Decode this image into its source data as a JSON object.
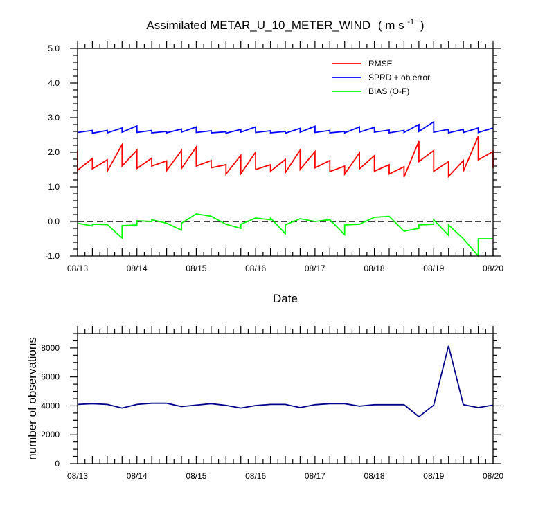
{
  "chart_data": [
    {
      "type": "line",
      "title": "Assimilated METAR_U_10_METER_WIND",
      "title_units": "( m s",
      "title_units_sup": "-1",
      "title_units_close": ")",
      "xlabel": "Date",
      "ylabel": "",
      "xticks": [
        "08/13",
        "08/14",
        "08/15",
        "08/16",
        "08/17",
        "08/18",
        "08/19",
        "08/20"
      ],
      "xlim": [
        0,
        7
      ],
      "ylim": [
        -1.0,
        5.0
      ],
      "yticks": [
        "-1.0",
        "0.0",
        "1.0",
        "2.0",
        "3.0",
        "4.0",
        "5.0"
      ],
      "zero_line": "dashed",
      "legend_position": "top-right",
      "series": [
        {
          "name": "RMSE",
          "color": "#ff0000",
          "points": [
            [
              0.0,
              2.05
            ],
            [
              0.0,
              1.48
            ],
            [
              0.25,
              1.82
            ],
            [
              0.25,
              1.52
            ],
            [
              0.5,
              1.78
            ],
            [
              0.5,
              1.45
            ],
            [
              0.75,
              2.22
            ],
            [
              0.75,
              1.6
            ],
            [
              1.0,
              2.06
            ],
            [
              1.0,
              1.53
            ],
            [
              1.25,
              1.83
            ],
            [
              1.25,
              1.6
            ],
            [
              1.5,
              1.75
            ],
            [
              1.5,
              1.47
            ],
            [
              1.75,
              2.05
            ],
            [
              1.75,
              1.53
            ],
            [
              2.0,
              2.15
            ],
            [
              2.0,
              1.6
            ],
            [
              2.25,
              1.76
            ],
            [
              2.25,
              1.55
            ],
            [
              2.5,
              1.64
            ],
            [
              2.5,
              1.37
            ],
            [
              2.75,
              1.91
            ],
            [
              2.75,
              1.38
            ],
            [
              3.0,
              2.0
            ],
            [
              3.0,
              1.5
            ],
            [
              3.25,
              1.64
            ],
            [
              3.25,
              1.45
            ],
            [
              3.5,
              1.79
            ],
            [
              3.5,
              1.41
            ],
            [
              3.75,
              2.06
            ],
            [
              3.75,
              1.5
            ],
            [
              4.0,
              2.02
            ],
            [
              4.0,
              1.55
            ],
            [
              4.25,
              1.76
            ],
            [
              4.25,
              1.44
            ],
            [
              4.5,
              1.6
            ],
            [
              4.5,
              1.37
            ],
            [
              4.75,
              1.98
            ],
            [
              4.75,
              1.52
            ],
            [
              5.0,
              1.9
            ],
            [
              5.0,
              1.45
            ],
            [
              5.25,
              1.64
            ],
            [
              5.25,
              1.37
            ],
            [
              5.5,
              1.58
            ],
            [
              5.5,
              1.28
            ],
            [
              5.75,
              2.32
            ],
            [
              5.75,
              1.73
            ],
            [
              6.0,
              2.05
            ],
            [
              6.0,
              1.45
            ],
            [
              6.25,
              1.73
            ],
            [
              6.25,
              1.3
            ],
            [
              6.5,
              1.76
            ],
            [
              6.5,
              1.45
            ],
            [
              6.75,
              2.46
            ],
            [
              6.75,
              1.78
            ],
            [
              7.0,
              2.02
            ],
            [
              7.0,
              1.55
            ]
          ]
        },
        {
          "name": "SPRD + ob error",
          "color": "#0000ff",
          "points": [
            [
              0.0,
              2.57
            ],
            [
              0.25,
              2.63
            ],
            [
              0.25,
              2.55
            ],
            [
              0.5,
              2.63
            ],
            [
              0.5,
              2.56
            ],
            [
              0.75,
              2.7
            ],
            [
              0.75,
              2.58
            ],
            [
              1.0,
              2.76
            ],
            [
              1.0,
              2.57
            ],
            [
              1.25,
              2.63
            ],
            [
              1.25,
              2.56
            ],
            [
              1.5,
              2.6
            ],
            [
              1.5,
              2.56
            ],
            [
              1.75,
              2.67
            ],
            [
              1.75,
              2.58
            ],
            [
              2.0,
              2.73
            ],
            [
              2.0,
              2.57
            ],
            [
              2.25,
              2.62
            ],
            [
              2.25,
              2.56
            ],
            [
              2.5,
              2.59
            ],
            [
              2.5,
              2.55
            ],
            [
              2.75,
              2.66
            ],
            [
              2.75,
              2.58
            ],
            [
              3.0,
              2.73
            ],
            [
              3.0,
              2.57
            ],
            [
              3.25,
              2.62
            ],
            [
              3.25,
              2.56
            ],
            [
              3.5,
              2.6
            ],
            [
              3.5,
              2.55
            ],
            [
              3.75,
              2.69
            ],
            [
              3.75,
              2.58
            ],
            [
              4.0,
              2.75
            ],
            [
              4.0,
              2.57
            ],
            [
              4.25,
              2.63
            ],
            [
              4.25,
              2.56
            ],
            [
              4.5,
              2.6
            ],
            [
              4.5,
              2.56
            ],
            [
              4.75,
              2.73
            ],
            [
              4.75,
              2.58
            ],
            [
              5.0,
              2.72
            ],
            [
              5.0,
              2.58
            ],
            [
              5.25,
              2.64
            ],
            [
              5.25,
              2.56
            ],
            [
              5.5,
              2.63
            ],
            [
              5.5,
              2.57
            ],
            [
              5.75,
              2.8
            ],
            [
              5.75,
              2.6
            ],
            [
              6.0,
              2.88
            ],
            [
              6.0,
              2.58
            ],
            [
              6.25,
              2.66
            ],
            [
              6.25,
              2.56
            ],
            [
              6.5,
              2.66
            ],
            [
              6.5,
              2.57
            ],
            [
              6.75,
              2.7
            ],
            [
              6.75,
              2.57
            ],
            [
              7.0,
              2.7
            ]
          ]
        },
        {
          "name": "BIAS (O-F)",
          "color": "#00ff00",
          "points": [
            [
              0.0,
              -0.05
            ],
            [
              0.25,
              -0.13
            ],
            [
              0.25,
              -0.08
            ],
            [
              0.5,
              -0.09
            ],
            [
              0.75,
              -0.48
            ],
            [
              0.75,
              -0.12
            ],
            [
              1.0,
              -0.1
            ],
            [
              1.0,
              0.02
            ],
            [
              1.25,
              0.0
            ],
            [
              1.25,
              0.05
            ],
            [
              1.5,
              -0.05
            ],
            [
              1.75,
              -0.25
            ],
            [
              1.75,
              -0.05
            ],
            [
              2.0,
              0.22
            ],
            [
              2.25,
              0.15
            ],
            [
              2.5,
              -0.08
            ],
            [
              2.75,
              -0.2
            ],
            [
              2.75,
              -0.08
            ],
            [
              3.0,
              0.1
            ],
            [
              3.25,
              0.05
            ],
            [
              3.25,
              0.1
            ],
            [
              3.5,
              -0.35
            ],
            [
              3.5,
              -0.1
            ],
            [
              3.75,
              0.08
            ],
            [
              4.0,
              0.0
            ],
            [
              4.25,
              0.05
            ],
            [
              4.5,
              -0.38
            ],
            [
              4.5,
              -0.1
            ],
            [
              4.75,
              -0.08
            ],
            [
              5.0,
              0.12
            ],
            [
              5.25,
              0.15
            ],
            [
              5.5,
              -0.28
            ],
            [
              5.75,
              -0.2
            ],
            [
              5.75,
              -0.1
            ],
            [
              6.0,
              -0.08
            ],
            [
              6.0,
              0.05
            ],
            [
              6.25,
              -0.4
            ],
            [
              6.25,
              -0.1
            ],
            [
              6.5,
              -0.5
            ],
            [
              6.75,
              -1.0
            ],
            [
              6.75,
              -0.5
            ],
            [
              7.0,
              -0.5
            ]
          ]
        }
      ]
    },
    {
      "type": "line",
      "title": "",
      "xlabel": "",
      "ylabel": "number of observations",
      "xticks": [
        "08/13",
        "08/14",
        "08/15",
        "08/16",
        "08/17",
        "08/18",
        "08/19",
        "08/20"
      ],
      "xlim": [
        0,
        7
      ],
      "ylim": [
        0,
        9000
      ],
      "yticks": [
        "0",
        "2000",
        "4000",
        "6000",
        "8000"
      ],
      "series": [
        {
          "color": "#00008b",
          "points": [
            [
              0.0,
              4100
            ],
            [
              0.25,
              4150
            ],
            [
              0.5,
              4100
            ],
            [
              0.75,
              3850
            ],
            [
              1.0,
              4100
            ],
            [
              1.25,
              4180
            ],
            [
              1.5,
              4180
            ],
            [
              1.75,
              3950
            ],
            [
              2.0,
              4050
            ],
            [
              2.25,
              4150
            ],
            [
              2.5,
              4030
            ],
            [
              2.75,
              3850
            ],
            [
              3.0,
              4020
            ],
            [
              3.25,
              4100
            ],
            [
              3.5,
              4100
            ],
            [
              3.75,
              3880
            ],
            [
              4.0,
              4080
            ],
            [
              4.25,
              4150
            ],
            [
              4.5,
              4150
            ],
            [
              4.75,
              3980
            ],
            [
              5.0,
              4080
            ],
            [
              5.25,
              4080
            ],
            [
              5.5,
              4080
            ],
            [
              5.75,
              3250
            ],
            [
              6.0,
              4050
            ],
            [
              6.25,
              8150
            ],
            [
              6.5,
              4080
            ],
            [
              6.75,
              3880
            ],
            [
              7.0,
              4050
            ]
          ]
        }
      ]
    }
  ]
}
